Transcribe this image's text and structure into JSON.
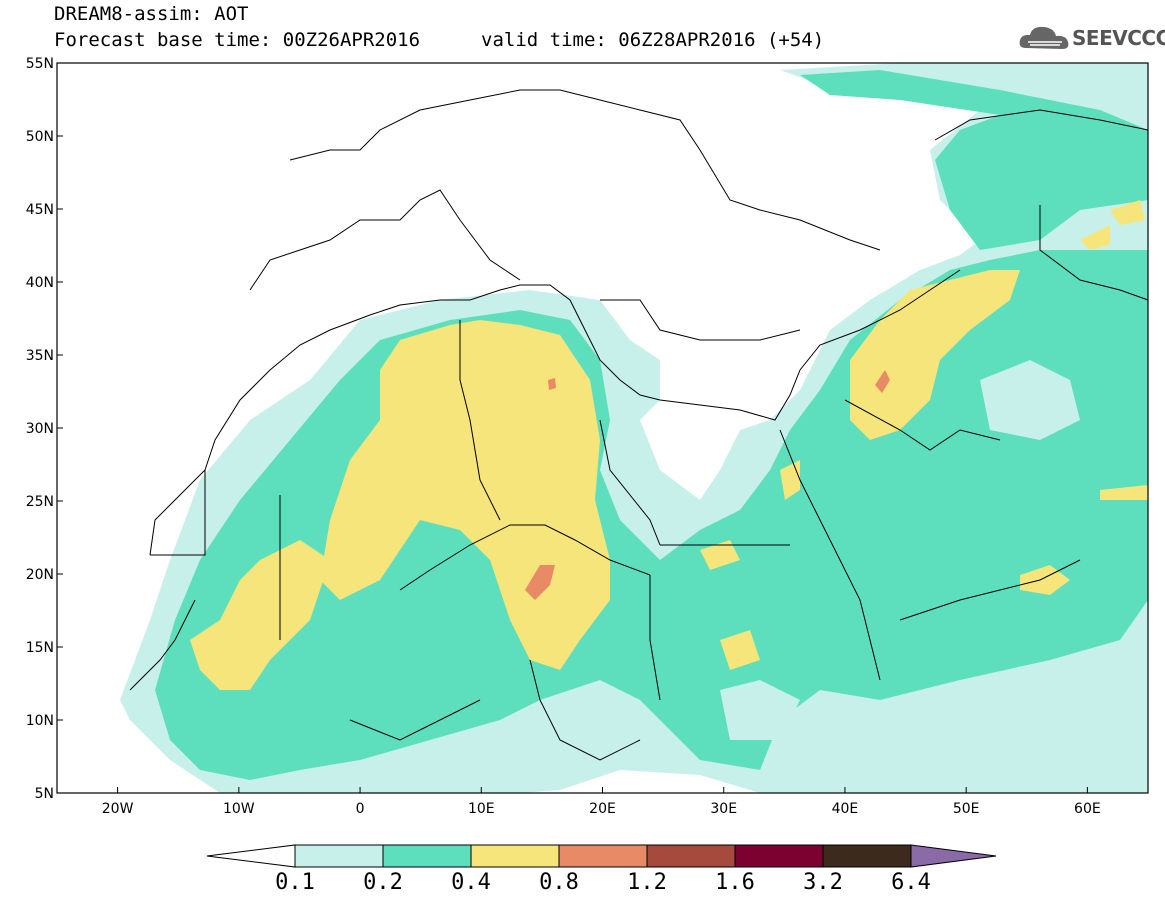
{
  "header": {
    "title_line1": "DREAM8-assim: AOT",
    "title_line2": "Forecast base time: 00Z26APR2016",
    "valid_time": "valid time: 06Z28APR2016 (+54)",
    "logo_text": "SEEVCCC"
  },
  "map": {
    "lon_range": [
      -25,
      65
    ],
    "lat_range": [
      5,
      55
    ],
    "lat_ticks": [
      {
        "value": 55,
        "label": "55N"
      },
      {
        "value": 50,
        "label": "50N"
      },
      {
        "value": 45,
        "label": "45N"
      },
      {
        "value": 40,
        "label": "40N"
      },
      {
        "value": 35,
        "label": "35N"
      },
      {
        "value": 30,
        "label": "30N"
      },
      {
        "value": 25,
        "label": "25N"
      },
      {
        "value": 20,
        "label": "20N"
      },
      {
        "value": 15,
        "label": "15N"
      },
      {
        "value": 10,
        "label": "10N"
      },
      {
        "value": 5,
        "label": "5N"
      }
    ],
    "lon_ticks": [
      {
        "value": -20,
        "label": "20W"
      },
      {
        "value": -10,
        "label": "10W"
      },
      {
        "value": 0,
        "label": "0"
      },
      {
        "value": 10,
        "label": "10E"
      },
      {
        "value": 20,
        "label": "20E"
      },
      {
        "value": 30,
        "label": "30E"
      },
      {
        "value": 40,
        "label": "40E"
      },
      {
        "value": 50,
        "label": "50E"
      },
      {
        "value": 60,
        "label": "60E"
      }
    ]
  },
  "colorbar": {
    "levels": [
      "0.1",
      "0.2",
      "0.4",
      "0.8",
      "1.2",
      "1.6",
      "3.2",
      "6.4"
    ],
    "colors": [
      "#ffffff",
      "#c8f0ea",
      "#5ddfbe",
      "#f5e57a",
      "#e88a66",
      "#a74a3e",
      "#7c0030",
      "#3c2a1c",
      "#8b6aa8"
    ]
  }
}
